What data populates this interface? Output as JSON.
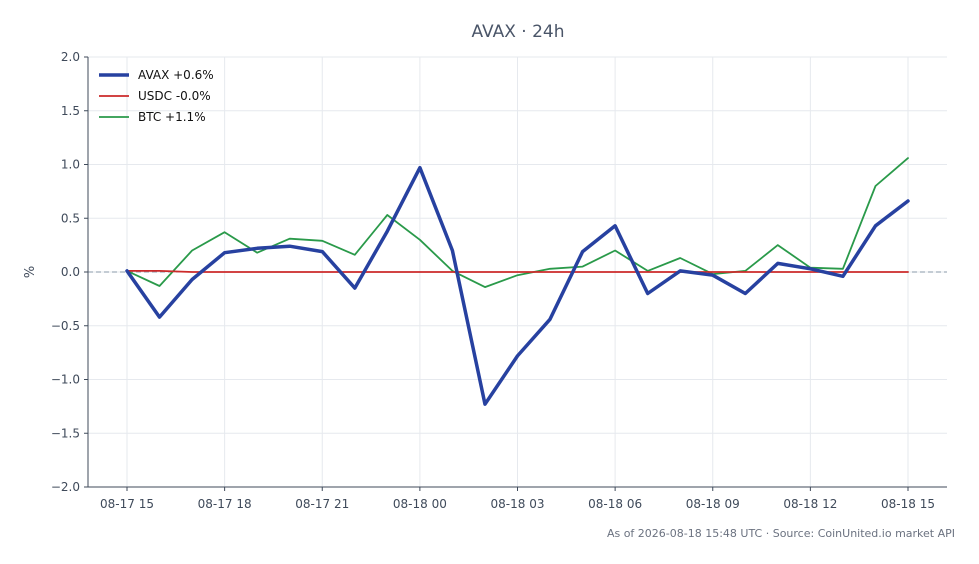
{
  "chart_data": {
    "type": "line",
    "title": "AVAX · 24h",
    "xlabel": "",
    "ylabel": "%",
    "ylim": [
      -2.0,
      2.0
    ],
    "y_ticks": [
      2.0,
      1.5,
      1.0,
      0.5,
      0.0,
      -0.5,
      -1.0,
      -1.5,
      -2.0
    ],
    "y_tick_labels": [
      "2.0",
      "1.5",
      "1.0",
      "0.5",
      "0.0",
      "−0.5",
      "−1.0",
      "−1.5",
      "−2.0"
    ],
    "x_ticks": [
      0,
      3,
      6,
      9,
      12,
      15,
      18,
      21,
      24
    ],
    "x_tick_labels": [
      "08-17 15",
      "08-17 18",
      "08-17 21",
      "08-18 00",
      "08-18 03",
      "08-18 06",
      "08-18 09",
      "08-18 12",
      "08-18 15"
    ],
    "x": [
      "08-17 15",
      "08-17 16",
      "08-17 17",
      "08-17 18",
      "08-17 19",
      "08-17 20",
      "08-17 21",
      "08-17 22",
      "08-17 23",
      "08-18 00",
      "08-18 01",
      "08-18 02",
      "08-18 03",
      "08-18 04",
      "08-18 05",
      "08-18 06",
      "08-18 07",
      "08-18 08",
      "08-18 09",
      "08-18 10",
      "08-18 11",
      "08-18 12",
      "08-18 13",
      "08-18 14",
      "08-18 15"
    ],
    "grid": true,
    "zero_line": true,
    "legend_position": "top-left",
    "series": [
      {
        "name": "AVAX +0.6%",
        "color": "#2741a0",
        "values": [
          0.01,
          -0.42,
          -0.07,
          0.18,
          0.22,
          0.24,
          0.19,
          -0.15,
          0.38,
          0.97,
          0.2,
          -1.23,
          -0.78,
          -0.44,
          0.19,
          0.43,
          -0.2,
          0.01,
          -0.03,
          -0.2,
          0.08,
          0.03,
          -0.04,
          0.43,
          0.66
        ]
      },
      {
        "name": "USDC -0.0%",
        "color": "#cc2a2a",
        "values": [
          0.01,
          0.01,
          0.0,
          0.0,
          0.0,
          0.0,
          0.0,
          0.0,
          0.0,
          0.0,
          0.0,
          0.0,
          0.0,
          0.0,
          0.0,
          0.0,
          0.0,
          0.0,
          0.0,
          0.0,
          0.0,
          0.0,
          0.0,
          0.0,
          0.0
        ]
      },
      {
        "name": "BTC +1.1%",
        "color": "#2a9a4a",
        "values": [
          0.01,
          -0.13,
          0.2,
          0.37,
          0.18,
          0.31,
          0.29,
          0.16,
          0.53,
          0.3,
          0.01,
          -0.14,
          -0.03,
          0.03,
          0.05,
          0.2,
          0.01,
          0.13,
          -0.02,
          0.01,
          0.25,
          0.04,
          0.03,
          0.8,
          1.06
        ]
      }
    ]
  },
  "footer": {
    "note": "As of 2026-08-18 15:48 UTC · Source: CoinUnited.io market API"
  }
}
